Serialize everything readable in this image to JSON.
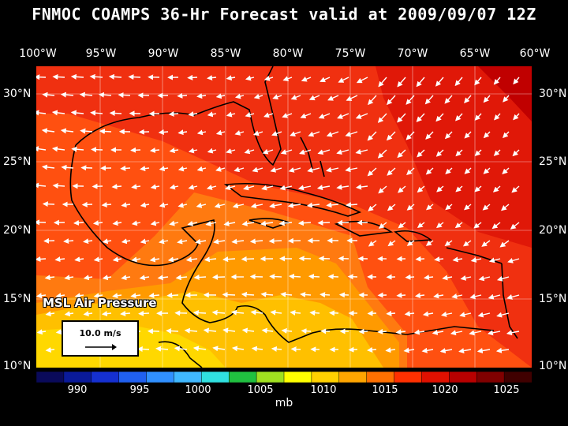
{
  "title": "FNMOC COAMPS 36-Hr Forecast valid at 2009/09/07 12Z",
  "field_label": "MSL Air Pressure",
  "wind_reference": {
    "label": "10.0 m/s"
  },
  "lon_labels": [
    "100°W",
    "95°W",
    "90°W",
    "85°W",
    "80°W",
    "75°W",
    "70°W",
    "65°W",
    "60°W"
  ],
  "lat_labels": [
    "30°N",
    "25°N",
    "20°N",
    "15°N",
    "10°N"
  ],
  "colorbar": {
    "units": "mb",
    "ticks": [
      "990",
      "995",
      "1000",
      "1005",
      "1010",
      "1015",
      "1020",
      "1025"
    ],
    "colors": [
      "#0a0a5a",
      "#0a1a9a",
      "#1530d0",
      "#2060f0",
      "#3090ff",
      "#40b8ff",
      "#30e0e0",
      "#20c040",
      "#a0e020",
      "#ffff00",
      "#ffd000",
      "#ffa500",
      "#ff7000",
      "#ff3000",
      "#e01000",
      "#b80000",
      "#800000",
      "#400000"
    ]
  },
  "colors": {
    "background": "#000000",
    "high_pressure": "#e02010",
    "mid_pressure": "#ff6a10",
    "low_pressure": "#ffc000",
    "land_outline": "#000000",
    "wind_arrows": "#ffffff"
  }
}
